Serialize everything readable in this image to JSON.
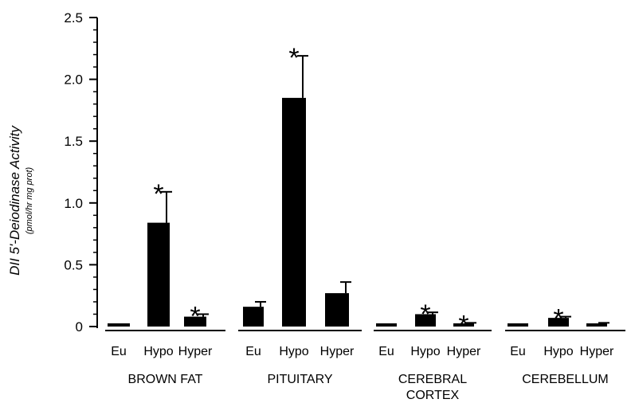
{
  "chart_data": {
    "type": "bar",
    "ylabel": "DII 5'-Deiodinase Activity",
    "ylabel_units": "(pmol/hr mg prot)",
    "ylim": [
      0,
      2.5
    ],
    "yticks": [
      "0",
      "0.5",
      "1.0",
      "1.5",
      "2.0",
      "2.5"
    ],
    "ytick_values": [
      0,
      0.5,
      1.0,
      1.5,
      2.0,
      2.5
    ],
    "bar_color": "#000000",
    "significance_marker": "*",
    "groups": [
      {
        "label": "BROWN FAT",
        "categories": [
          "Eu",
          "Hypo",
          "Hyper"
        ],
        "values": [
          0.01,
          0.84,
          0.08
        ],
        "errors": [
          0.0,
          0.25,
          0.02
        ],
        "significant": [
          false,
          true,
          true
        ]
      },
      {
        "label": "PITUITARY",
        "categories": [
          "Eu",
          "Hypo",
          "Hyper"
        ],
        "values": [
          0.16,
          1.85,
          0.27
        ],
        "errors": [
          0.04,
          0.34,
          0.09
        ],
        "significant": [
          false,
          true,
          false
        ]
      },
      {
        "label_lines": [
          "CEREBRAL",
          "CORTEX"
        ],
        "categories": [
          "Eu",
          "Hypo",
          "Hyper"
        ],
        "values": [
          0.0,
          0.1,
          0.02
        ],
        "errors": [
          0.0,
          0.015,
          0.01
        ],
        "significant": [
          false,
          true,
          true
        ]
      },
      {
        "label": "CEREBELLUM",
        "categories": [
          "Eu",
          "Hypo",
          "Hyper"
        ],
        "values": [
          0.0,
          0.07,
          0.02
        ],
        "errors": [
          0.0,
          0.01,
          0.01
        ],
        "significant": [
          false,
          true,
          false
        ]
      }
    ]
  }
}
